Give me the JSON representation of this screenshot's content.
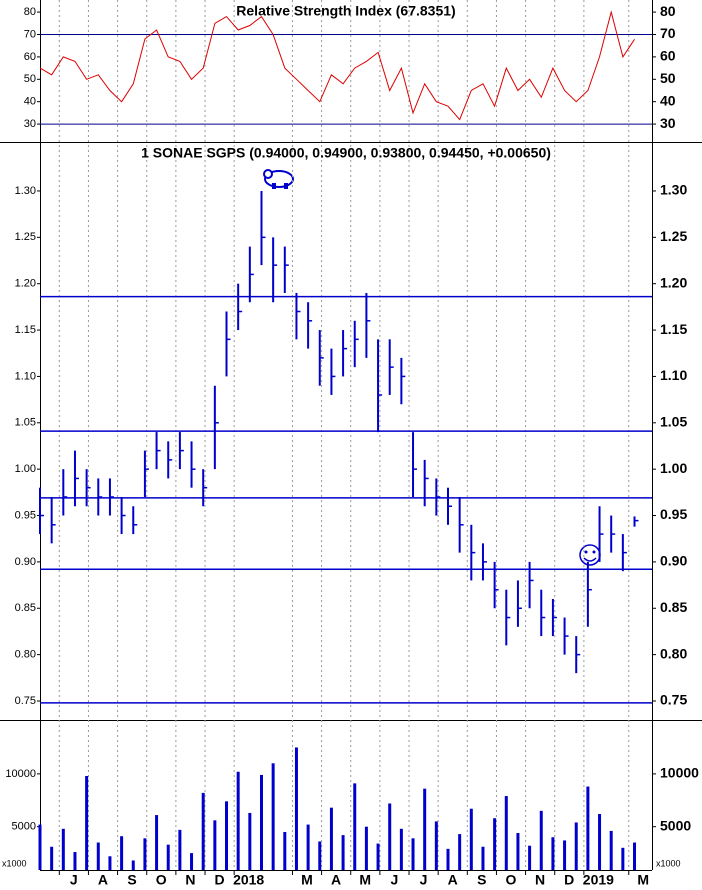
{
  "chart_data": [
    {
      "type": "line",
      "title": "Relative Strength Index (67.8351)",
      "color": "#dd0000",
      "x": [
        0,
        2,
        4,
        6,
        8,
        10,
        12,
        14,
        16,
        18,
        20,
        22,
        24,
        26,
        28,
        30,
        32,
        34,
        36,
        38,
        40,
        42,
        44,
        46,
        48,
        50,
        52,
        54,
        56,
        58,
        60,
        62,
        64,
        66,
        68,
        70,
        72,
        74,
        76,
        78,
        80,
        82,
        84,
        86,
        88,
        90,
        92,
        94,
        96,
        98,
        100,
        102
      ],
      "values": [
        55,
        52,
        60,
        58,
        50,
        52,
        45,
        40,
        48,
        68,
        72,
        60,
        58,
        50,
        55,
        75,
        78,
        72,
        74,
        78,
        70,
        55,
        50,
        45,
        40,
        52,
        48,
        55,
        58,
        62,
        45,
        55,
        35,
        48,
        40,
        38,
        32,
        45,
        48,
        38,
        55,
        45,
        50,
        42,
        55,
        45,
        40,
        45,
        60,
        80,
        60,
        67.8351
      ],
      "xlim": [
        0,
        105
      ],
      "ylim": [
        22,
        85.4
      ],
      "yticks": [
        30,
        40,
        50,
        60,
        70,
        80
      ],
      "hlines": [
        70,
        30
      ],
      "hline_color": "#00008b"
    },
    {
      "type": "ohlc",
      "title": "1 SONAE SGPS (0.94000, 0.94900, 0.93800, 0.94450, +0.00650)",
      "color": "#0000cc",
      "x": [
        0,
        2,
        4,
        6,
        8,
        10,
        12,
        14,
        16,
        18,
        20,
        22,
        24,
        26,
        28,
        30,
        32,
        34,
        36,
        38,
        40,
        42,
        44,
        46,
        48,
        50,
        52,
        54,
        56,
        58,
        60,
        62,
        64,
        66,
        68,
        70,
        72,
        74,
        76,
        78,
        80,
        82,
        84,
        86,
        88,
        90,
        92,
        94,
        96,
        98,
        100,
        102
      ],
      "high": [
        0.98,
        0.97,
        1.0,
        1.02,
        1.0,
        0.99,
        0.99,
        0.97,
        0.96,
        1.02,
        1.04,
        1.03,
        1.04,
        1.03,
        1.0,
        1.09,
        1.17,
        1.2,
        1.24,
        1.3,
        1.25,
        1.24,
        1.19,
        1.18,
        1.15,
        1.13,
        1.15,
        1.16,
        1.19,
        1.14,
        1.14,
        1.12,
        1.04,
        1.01,
        0.99,
        0.98,
        0.97,
        0.94,
        0.92,
        0.9,
        0.87,
        0.88,
        0.9,
        0.87,
        0.86,
        0.84,
        0.82,
        0.9,
        0.96,
        0.95,
        0.93,
        0.949
      ],
      "low": [
        0.93,
        0.92,
        0.95,
        0.96,
        0.96,
        0.95,
        0.95,
        0.93,
        0.93,
        0.97,
        1.0,
        0.99,
        1.0,
        0.98,
        0.96,
        1.0,
        1.1,
        1.15,
        1.18,
        1.22,
        1.18,
        1.19,
        1.14,
        1.13,
        1.09,
        1.08,
        1.1,
        1.11,
        1.12,
        1.04,
        1.08,
        1.07,
        0.97,
        0.96,
        0.95,
        0.94,
        0.91,
        0.88,
        0.88,
        0.85,
        0.81,
        0.83,
        0.85,
        0.82,
        0.82,
        0.8,
        0.78,
        0.83,
        0.9,
        0.91,
        0.89,
        0.938
      ],
      "close": [
        0.95,
        0.94,
        0.97,
        0.99,
        0.98,
        0.97,
        0.97,
        0.95,
        0.94,
        1.0,
        1.02,
        1.01,
        1.02,
        1.0,
        0.98,
        1.05,
        1.14,
        1.17,
        1.21,
        1.25,
        1.22,
        1.22,
        1.17,
        1.16,
        1.12,
        1.1,
        1.13,
        1.14,
        1.16,
        1.08,
        1.11,
        1.1,
        1.0,
        0.99,
        0.97,
        0.96,
        0.94,
        0.91,
        0.9,
        0.87,
        0.84,
        0.85,
        0.88,
        0.84,
        0.84,
        0.82,
        0.8,
        0.87,
        0.93,
        0.93,
        0.91,
        0.9445
      ],
      "xlim": [
        0,
        105
      ],
      "ylim": [
        0.7295,
        1.3528
      ],
      "yticks": [
        {
          "value": 0.75,
          "label": "0.75"
        },
        {
          "value": 0.8,
          "label": "0.80"
        },
        {
          "value": 0.85,
          "label": "0.85"
        },
        {
          "value": 0.9,
          "label": "0.90"
        },
        {
          "value": 0.95,
          "label": "0.95"
        },
        {
          "value": 1.0,
          "label": "1.00"
        },
        {
          "value": 1.05,
          "label": "1.05"
        },
        {
          "value": 1.1,
          "label": "1.10"
        },
        {
          "value": 1.15,
          "label": "1.15"
        },
        {
          "value": 1.2,
          "label": "1.20"
        },
        {
          "value": 1.25,
          "label": "1.25"
        },
        {
          "value": 1.3,
          "label": "1.30"
        }
      ],
      "hlines": [
        1.186,
        1.041,
        0.969,
        0.892,
        0.748
      ],
      "hline_color": "#0000cc"
    },
    {
      "type": "bar",
      "color": "#0000cc",
      "unit_label": "x1000",
      "x": [
        0,
        2,
        4,
        6,
        8,
        10,
        12,
        14,
        16,
        18,
        20,
        22,
        24,
        26,
        28,
        30,
        32,
        34,
        36,
        38,
        40,
        42,
        44,
        46,
        48,
        50,
        52,
        54,
        56,
        58,
        60,
        62,
        64,
        66,
        68,
        70,
        72,
        74,
        76,
        78,
        80,
        82,
        84,
        86,
        88,
        90,
        92,
        94,
        96,
        98,
        100,
        102
      ],
      "values": [
        5200,
        3100,
        4800,
        2600,
        9800,
        3500,
        2200,
        4100,
        1800,
        3900,
        6100,
        3300,
        4700,
        2500,
        8200,
        5600,
        7400,
        10200,
        6300,
        9900,
        11000,
        4500,
        12500,
        5200,
        3600,
        6800,
        4200,
        9100,
        5000,
        3400,
        7200,
        4800,
        3900,
        8600,
        5500,
        2900,
        4300,
        6700,
        3100,
        5800,
        7900,
        4400,
        3200,
        6500,
        4000,
        3700,
        5400,
        8800,
        6200,
        4600,
        3000,
        3500
      ],
      "xlim": [
        0,
        105
      ],
      "ylim": [
        900,
        15100
      ],
      "yticks": [
        5000,
        10000
      ],
      "grid": true,
      "xticks": [
        {
          "value": 5.8,
          "label": "J"
        },
        {
          "value": 10.8,
          "label": "A"
        },
        {
          "value": 15.8,
          "label": "S"
        },
        {
          "value": 20.8,
          "label": "O"
        },
        {
          "value": 25.8,
          "label": "N"
        },
        {
          "value": 30.8,
          "label": "D"
        },
        {
          "value": 35.8,
          "label": "2018"
        },
        {
          "value": 45.8,
          "label": "M"
        },
        {
          "value": 50.8,
          "label": "A"
        },
        {
          "value": 55.8,
          "label": "M"
        },
        {
          "value": 60.8,
          "label": "J"
        },
        {
          "value": 65.8,
          "label": "J"
        },
        {
          "value": 70.8,
          "label": "A"
        },
        {
          "value": 75.8,
          "label": "S"
        },
        {
          "value": 80.8,
          "label": "O"
        },
        {
          "value": 85.8,
          "label": "N"
        },
        {
          "value": 90.8,
          "label": "D"
        },
        {
          "value": 95.8,
          "label": "2019"
        },
        {
          "value": 103.5,
          "label": "M"
        }
      ]
    }
  ]
}
